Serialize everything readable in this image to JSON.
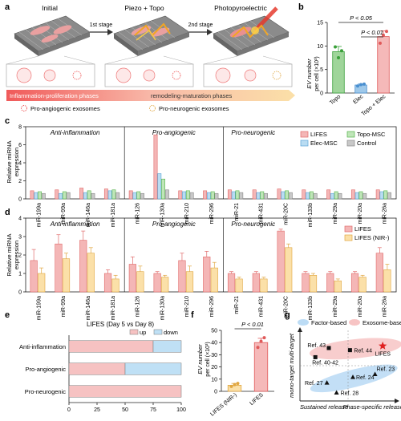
{
  "panel_labels": {
    "a": "a",
    "b": "b",
    "c": "c",
    "d": "d",
    "e": "e",
    "f": "f",
    "g": "g"
  },
  "panel_a": {
    "stage_titles": [
      "Initial",
      "Piezo + Topo",
      "Photopyroelectric"
    ],
    "arrow_labels": [
      "1st stage",
      "2nd stage"
    ],
    "phase_bar": [
      "Inflammation-proliferation phases",
      "remodeling-maturation phases"
    ],
    "legend": [
      "Pro-angiogenic exosomes",
      "Pro-neurogenic exosomes"
    ]
  },
  "chart_data": [
    {
      "panel": "b",
      "type": "bar",
      "ylabel_lines": [
        "EV number",
        "per cell (×10³)"
      ],
      "ylim": [
        0,
        15
      ],
      "yticks": [
        0,
        5,
        10,
        15
      ],
      "categories": [
        "Topo",
        "Elec",
        "Topo + Elec"
      ],
      "values": [
        8.8,
        1.7,
        12.0
      ],
      "errors": [
        1.1,
        0.2,
        1.2
      ],
      "points": [
        [
          9.8,
          7.5,
          9.0
        ],
        [
          1.5,
          1.8,
          1.9
        ],
        [
          10.6,
          12.3,
          13.1
        ]
      ],
      "colors": [
        "#9fd59a",
        "#9fc9ea",
        "#f5b9b9"
      ],
      "stroke": [
        "#3aa13a",
        "#4a8fd0",
        "#e05a5a"
      ],
      "annotations": [
        "P < 0.05",
        "P < 0.01"
      ]
    },
    {
      "panel": "c",
      "type": "bar",
      "ylabel_lines": [
        "Relative miRNA",
        "expression"
      ],
      "ylim": [
        0,
        8
      ],
      "yticks": [
        0,
        2,
        4,
        6,
        8
      ],
      "groups": [
        "Anti-inflammation",
        "Pro-angiogenic",
        "Pro-neurogenic"
      ],
      "group_sizes": [
        4,
        4,
        7
      ],
      "categories": [
        "miR-199a",
        "miR-99a",
        "miR-146a",
        "miR-181a",
        "miR-126",
        "miR-130a",
        "miR-210",
        "miR-296",
        "miR-21",
        "miR-431",
        "miR-20C",
        "miR-133b",
        "miR-29a",
        "miR-20a",
        "miR-26a"
      ],
      "series": [
        {
          "name": "LIFES",
          "color": "#f4b6b6",
          "stroke": "#e06a6a",
          "values": [
            0.9,
            1.0,
            1.2,
            1.1,
            0.9,
            7.1,
            0.9,
            0.9,
            1.0,
            1.0,
            1.1,
            1.0,
            1.0,
            1.0,
            1.0
          ]
        },
        {
          "name": "Elec-MSC",
          "color": "#b9dcf2",
          "stroke": "#5aa4d8",
          "values": [
            0.7,
            0.6,
            0.7,
            0.9,
            0.7,
            2.8,
            0.8,
            0.7,
            0.8,
            0.7,
            0.8,
            0.7,
            0.6,
            0.7,
            0.8
          ]
        },
        {
          "name": "Topo-MSC",
          "color": "#bfe6b8",
          "stroke": "#55b24a",
          "values": [
            0.8,
            0.8,
            0.9,
            1.0,
            0.8,
            2.2,
            0.9,
            0.8,
            0.9,
            0.8,
            0.9,
            0.8,
            0.8,
            0.8,
            0.9
          ]
        },
        {
          "name": "Control",
          "color": "#c8c8c8",
          "stroke": "#888888",
          "values": [
            0.6,
            0.7,
            0.6,
            0.7,
            0.6,
            1.0,
            0.7,
            0.6,
            0.7,
            0.6,
            0.7,
            0.6,
            0.6,
            0.6,
            0.7
          ]
        }
      ],
      "legend_order": [
        "LIFES",
        "Topo-MSC",
        "Elec-MSC",
        "Control"
      ]
    },
    {
      "panel": "d",
      "type": "bar",
      "ylabel_lines": [
        "Relative miRNA",
        "expression"
      ],
      "ylim": [
        0,
        4
      ],
      "yticks": [
        0,
        1,
        2,
        3,
        4
      ],
      "groups": [
        "Anti-inflammation",
        "Pro-angiogenic",
        "Pro-neurogenic"
      ],
      "group_sizes": [
        4,
        4,
        7
      ],
      "categories": [
        "miR-199a",
        "miR-99a",
        "miR-146a",
        "miR-181a",
        "miR-126",
        "miR-130a",
        "miR-210",
        "miR-296",
        "miR-21",
        "miR-431",
        "miR-20C",
        "miR-133b",
        "miR-29a",
        "miR-20a",
        "miR-26a"
      ],
      "series": [
        {
          "name": "LIFES",
          "color": "#f4b6b6",
          "stroke": "#e06a6a",
          "values": [
            1.7,
            2.6,
            2.8,
            1.0,
            1.5,
            1.0,
            1.7,
            1.9,
            1.0,
            1.0,
            3.3,
            1.0,
            1.0,
            1.0,
            2.1
          ],
          "errors": [
            0.6,
            0.5,
            0.5,
            0.2,
            0.4,
            0.1,
            0.4,
            0.3,
            0.1,
            0.1,
            0.1,
            0.1,
            0.1,
            0.1,
            0.3
          ]
        },
        {
          "name": "LIFES (NIR-)",
          "color": "#fbe0a8",
          "stroke": "#e0a640",
          "values": [
            1.0,
            1.8,
            2.1,
            0.7,
            1.1,
            0.8,
            1.1,
            1.3,
            0.7,
            0.7,
            2.4,
            0.9,
            0.6,
            0.8,
            1.2
          ],
          "errors": [
            0.3,
            0.3,
            0.3,
            0.2,
            0.3,
            0.1,
            0.3,
            0.3,
            0.1,
            0.1,
            0.2,
            0.1,
            0.1,
            0.1,
            0.3
          ]
        }
      ]
    },
    {
      "panel": "e",
      "type": "bar",
      "title": "LIFES (Day 5 vs Day 8)",
      "xlim": [
        0,
        100
      ],
      "xticks": [
        0,
        25,
        50,
        75,
        100
      ],
      "categories": [
        "Anti-inflammation",
        "Pro-angiogenic",
        "Pro-neurogenic"
      ],
      "series": [
        {
          "name": "up",
          "color": "#f6c2c2",
          "values": [
            75,
            50,
            100
          ]
        },
        {
          "name": "down",
          "color": "#bfe0f5",
          "values": [
            25,
            50,
            0
          ]
        }
      ]
    },
    {
      "panel": "f",
      "type": "bar",
      "ylabel_lines": [
        "EV number",
        "per cell (×10³)"
      ],
      "ylim": [
        0,
        50
      ],
      "yticks": [
        0,
        10,
        20,
        30,
        40,
        50
      ],
      "categories": [
        "LIFES (NIR-)",
        "LIFES"
      ],
      "values": [
        5,
        40
      ],
      "errors": [
        1.5,
        3.5
      ],
      "points": [
        [
          4,
          5.5,
          6.5
        ],
        [
          36,
          41,
          44
        ]
      ],
      "colors": [
        "#fbe0a8",
        "#f5b9b9"
      ],
      "stroke": [
        "#e0a640",
        "#e05a5a"
      ],
      "annotations": [
        "P < 0.01"
      ]
    },
    {
      "panel": "g",
      "type": "scatter",
      "legend": [
        "Factor-based",
        "Exosome-based"
      ],
      "ylabel": "mono-target multi-target",
      "xlabel": [
        "Sustained release",
        "Phase-specific release"
      ],
      "points": [
        {
          "label": "Ref. 43",
          "x": 0.3,
          "y": 0.75,
          "marker": "square"
        },
        {
          "label": "Ref. 44",
          "x": 0.52,
          "y": 0.72,
          "marker": "square"
        },
        {
          "label": "Ref. 40-42",
          "x": 0.16,
          "y": 0.62,
          "marker": "square"
        },
        {
          "label": "LIFES",
          "x": 0.86,
          "y": 0.78,
          "marker": "star"
        },
        {
          "label": "Ref. 24",
          "x": 0.55,
          "y": 0.34,
          "marker": "triangle"
        },
        {
          "label": "Ref. 23",
          "x": 0.78,
          "y": 0.38,
          "marker": "triangle"
        },
        {
          "label": "Ref. 27",
          "x": 0.28,
          "y": 0.26,
          "marker": "triangle"
        },
        {
          "label": "Ref. 28",
          "x": 0.38,
          "y": 0.12,
          "marker": "triangle"
        }
      ]
    }
  ],
  "colors": {
    "pink": "#f5b9b9",
    "blue": "#b9dcf2",
    "green": "#bfe6b8",
    "gray": "#c8c8c8",
    "yellow": "#fbe0a8",
    "red": "#e02020"
  }
}
